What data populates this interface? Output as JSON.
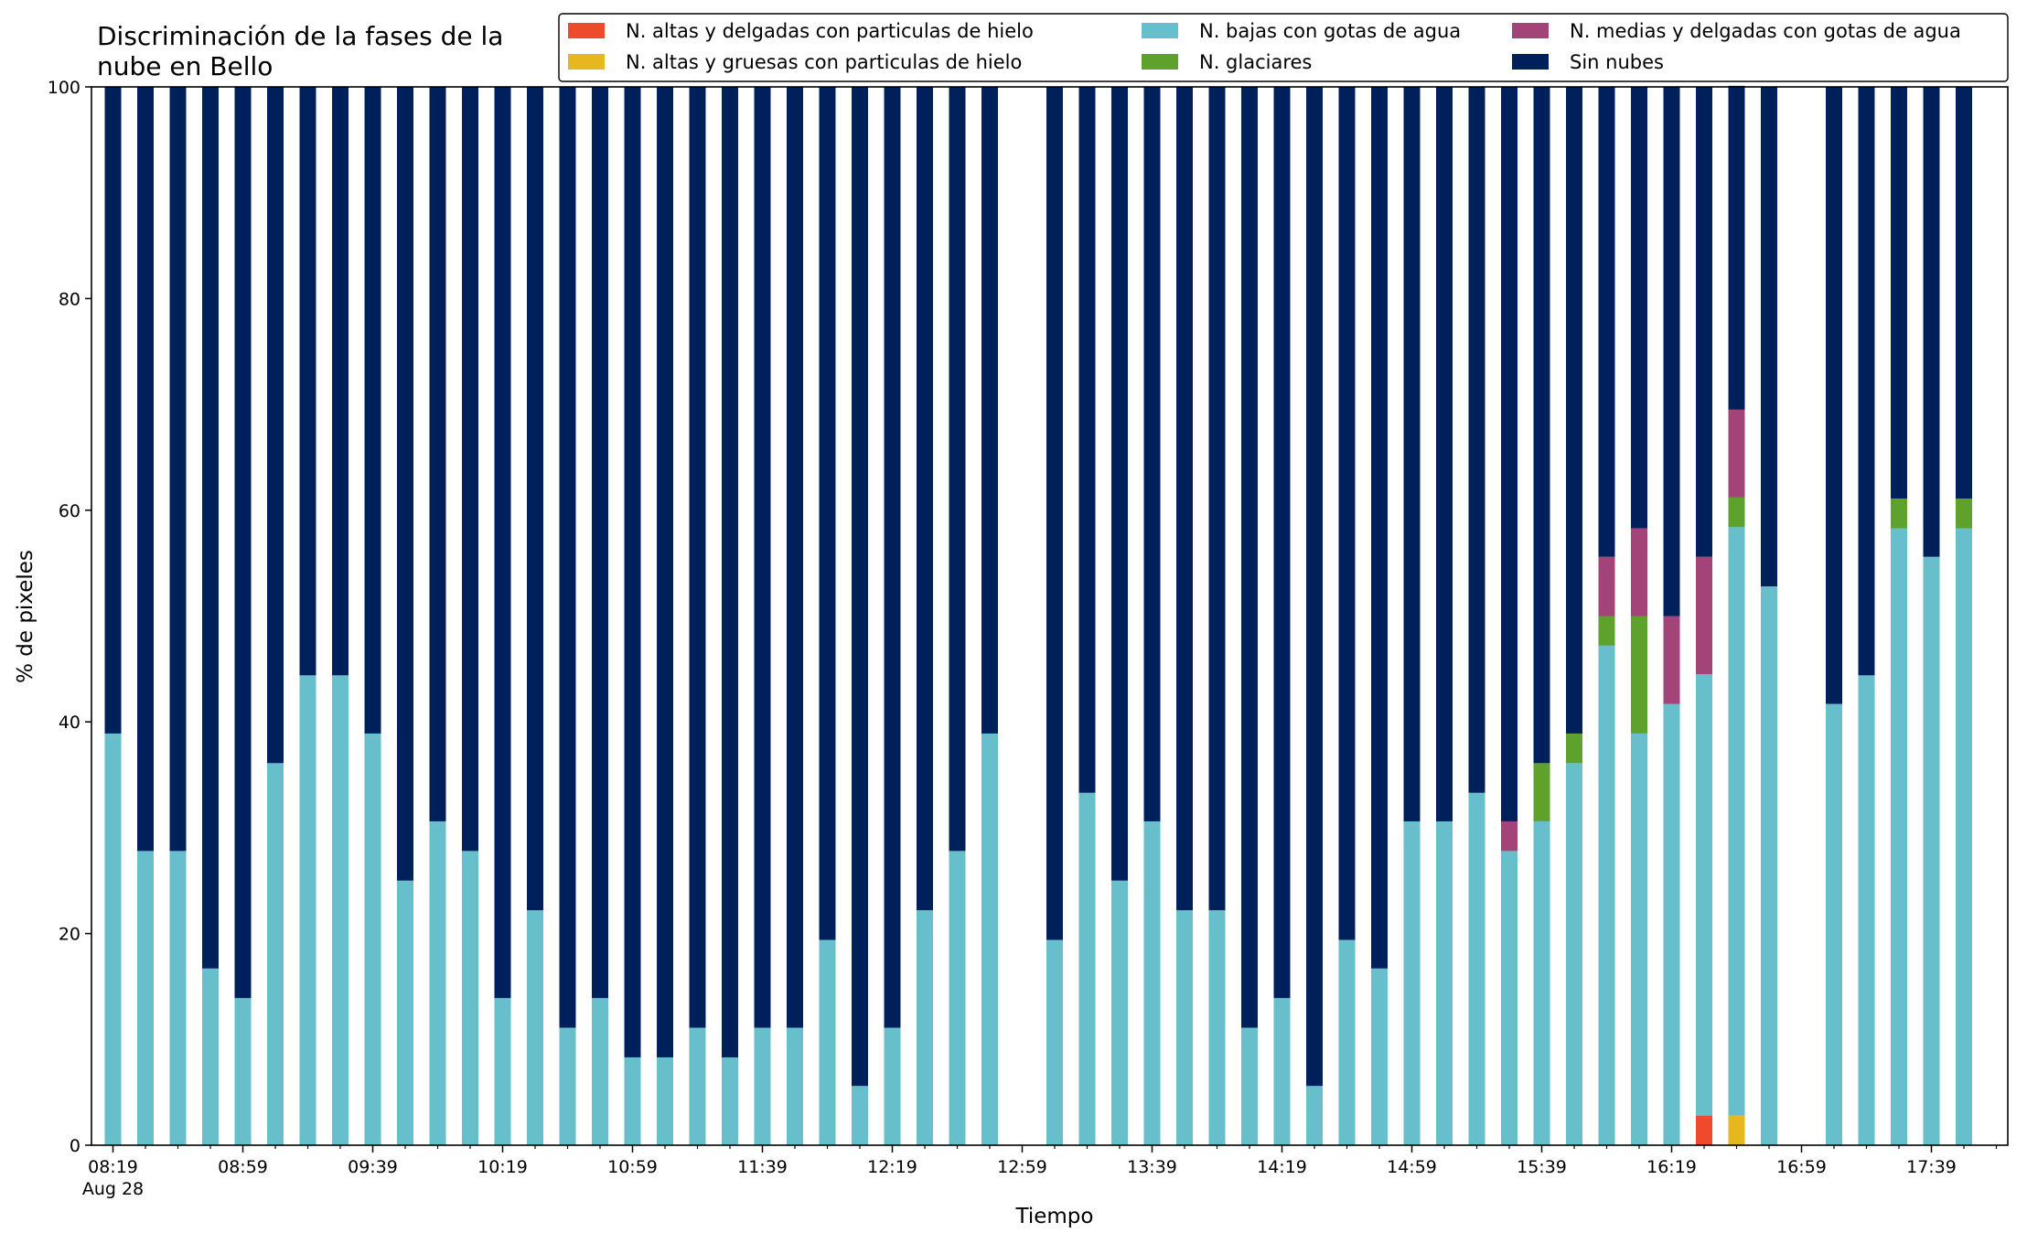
{
  "chart_data": {
    "type": "bar",
    "stacked": true,
    "title": "Discriminación de la fases de la\nnube en Bello",
    "xlabel": "Tiempo",
    "ylabel": "% de pixeles",
    "ylim": [
      0,
      100
    ],
    "yticks": [
      0,
      20,
      40,
      60,
      80,
      100
    ],
    "xtick_labels": [
      "08:19",
      "08:59",
      "09:39",
      "10:19",
      "10:59",
      "11:39",
      "12:19",
      "12:59",
      "13:39",
      "14:19",
      "14:59",
      "15:39",
      "16:19",
      "16:59",
      "17:39"
    ],
    "x_date_label": "Aug 28",
    "grid": false,
    "legend_position": "top-right",
    "legend": [
      "N. altas y delgadas con particulas de hielo",
      "N. altas y gruesas con particulas de hielo",
      "N. bajas con gotas de agua",
      "N. glaciares",
      "N. medias y delgadas con gotas de agua",
      "Sin nubes"
    ],
    "series_colors": [
      "#ee4a2b",
      "#e6b71e",
      "#66bfca",
      "#5ea22d",
      "#a24478",
      "#00205b"
    ],
    "categories": [
      "08:19",
      "08:29",
      "08:39",
      "08:49",
      "08:59",
      "09:09",
      "09:19",
      "09:29",
      "09:39",
      "09:49",
      "09:59",
      "10:09",
      "10:19",
      "10:29",
      "10:39",
      "10:49",
      "10:59",
      "11:09",
      "11:19",
      "11:29",
      "11:39",
      "11:49",
      "11:59",
      "12:09",
      "12:19",
      "12:29",
      "12:39",
      "12:49",
      "12:59",
      "13:09",
      "13:19",
      "13:29",
      "13:39",
      "13:49",
      "13:59",
      "14:09",
      "14:19",
      "14:29",
      "14:39",
      "14:49",
      "14:59",
      "15:09",
      "15:19",
      "15:29",
      "15:39",
      "15:49",
      "15:59",
      "16:09",
      "16:19",
      "16:29",
      "16:39",
      "16:49",
      "16:59",
      "17:09",
      "17:19",
      "17:29",
      "17:39",
      "17:49"
    ],
    "series": [
      {
        "name": "N. altas y delgadas con particulas de hielo",
        "values": [
          0,
          0,
          0,
          0,
          0,
          0,
          0,
          0,
          0,
          0,
          0,
          0,
          0,
          0,
          0,
          0,
          0,
          0,
          0,
          0,
          0,
          0,
          0,
          0,
          0,
          0,
          0,
          0,
          0,
          0,
          0,
          0,
          0,
          0,
          0,
          0,
          0,
          0,
          0,
          0,
          0,
          0,
          0,
          0,
          0,
          0,
          0,
          0,
          0,
          2.8,
          0,
          0,
          0,
          0,
          0,
          0,
          0,
          0
        ]
      },
      {
        "name": "N. altas y gruesas con particulas de hielo",
        "values": [
          0,
          0,
          0,
          0,
          0,
          0,
          0,
          0,
          0,
          0,
          0,
          0,
          0,
          0,
          0,
          0,
          0,
          0,
          0,
          0,
          0,
          0,
          0,
          0,
          0,
          0,
          0,
          0,
          0,
          0,
          0,
          0,
          0,
          0,
          0,
          0,
          0,
          0,
          0,
          0,
          0,
          0,
          0,
          0,
          0,
          0,
          0,
          0,
          0,
          0,
          2.8,
          0,
          0,
          0,
          0,
          0,
          0,
          0
        ]
      },
      {
        "name": "N. bajas con gotas de agua",
        "values": [
          38.9,
          27.8,
          27.8,
          16.7,
          13.9,
          36.1,
          44.4,
          44.4,
          38.9,
          25.0,
          30.6,
          27.8,
          13.9,
          22.2,
          11.1,
          13.9,
          8.3,
          8.3,
          11.1,
          8.3,
          11.1,
          11.1,
          19.4,
          5.6,
          11.1,
          22.2,
          27.8,
          38.9,
          0,
          19.4,
          33.3,
          25.0,
          30.6,
          22.2,
          22.2,
          11.1,
          13.9,
          5.6,
          19.4,
          16.7,
          30.6,
          30.6,
          33.3,
          27.8,
          30.6,
          36.1,
          47.2,
          38.9,
          41.7,
          41.7,
          55.6,
          52.8,
          0,
          41.7,
          44.4,
          58.3,
          55.6,
          58.3
        ]
      },
      {
        "name": "N. glaciares",
        "values": [
          0,
          0,
          0,
          0,
          0,
          0,
          0,
          0,
          0,
          0,
          0,
          0,
          0,
          0,
          0,
          0,
          0,
          0,
          0,
          0,
          0,
          0,
          0,
          0,
          0,
          0,
          0,
          0,
          0,
          0,
          0,
          0,
          0,
          0,
          0,
          0,
          0,
          0,
          0,
          0,
          0,
          0,
          0,
          0,
          5.5,
          2.8,
          2.8,
          11.1,
          0,
          0,
          2.8,
          0,
          0,
          0,
          0,
          2.8,
          0,
          2.8
        ]
      },
      {
        "name": "N. medias y delgadas con gotas de agua",
        "values": [
          0,
          0,
          0,
          0,
          0,
          0,
          0,
          0,
          0,
          0,
          0,
          0,
          0,
          0,
          0,
          0,
          0,
          0,
          0,
          0,
          0,
          0,
          0,
          0,
          0,
          0,
          0,
          0,
          0,
          0,
          0,
          0,
          0,
          0,
          0,
          0,
          0,
          0,
          0,
          0,
          0,
          0,
          0,
          2.8,
          0,
          0,
          5.6,
          8.3,
          8.3,
          11.1,
          8.3,
          0,
          0,
          0,
          0,
          0,
          0,
          0
        ]
      },
      {
        "name": "Sin nubes",
        "values": [
          61.1,
          72.2,
          72.2,
          83.3,
          86.1,
          63.9,
          55.6,
          55.6,
          61.1,
          75.0,
          69.4,
          72.2,
          86.1,
          77.8,
          88.9,
          86.1,
          91.7,
          91.7,
          88.9,
          91.7,
          88.9,
          88.9,
          80.6,
          94.4,
          88.9,
          77.8,
          72.2,
          61.1,
          0,
          80.6,
          66.7,
          75.0,
          69.4,
          77.8,
          77.8,
          88.9,
          86.1,
          94.4,
          80.6,
          83.3,
          69.4,
          69.4,
          66.7,
          69.4,
          63.9,
          61.1,
          44.4,
          41.7,
          50.0,
          44.4,
          30.6,
          47.2,
          0,
          58.3,
          55.6,
          38.9,
          44.4,
          38.9
        ]
      }
    ]
  }
}
